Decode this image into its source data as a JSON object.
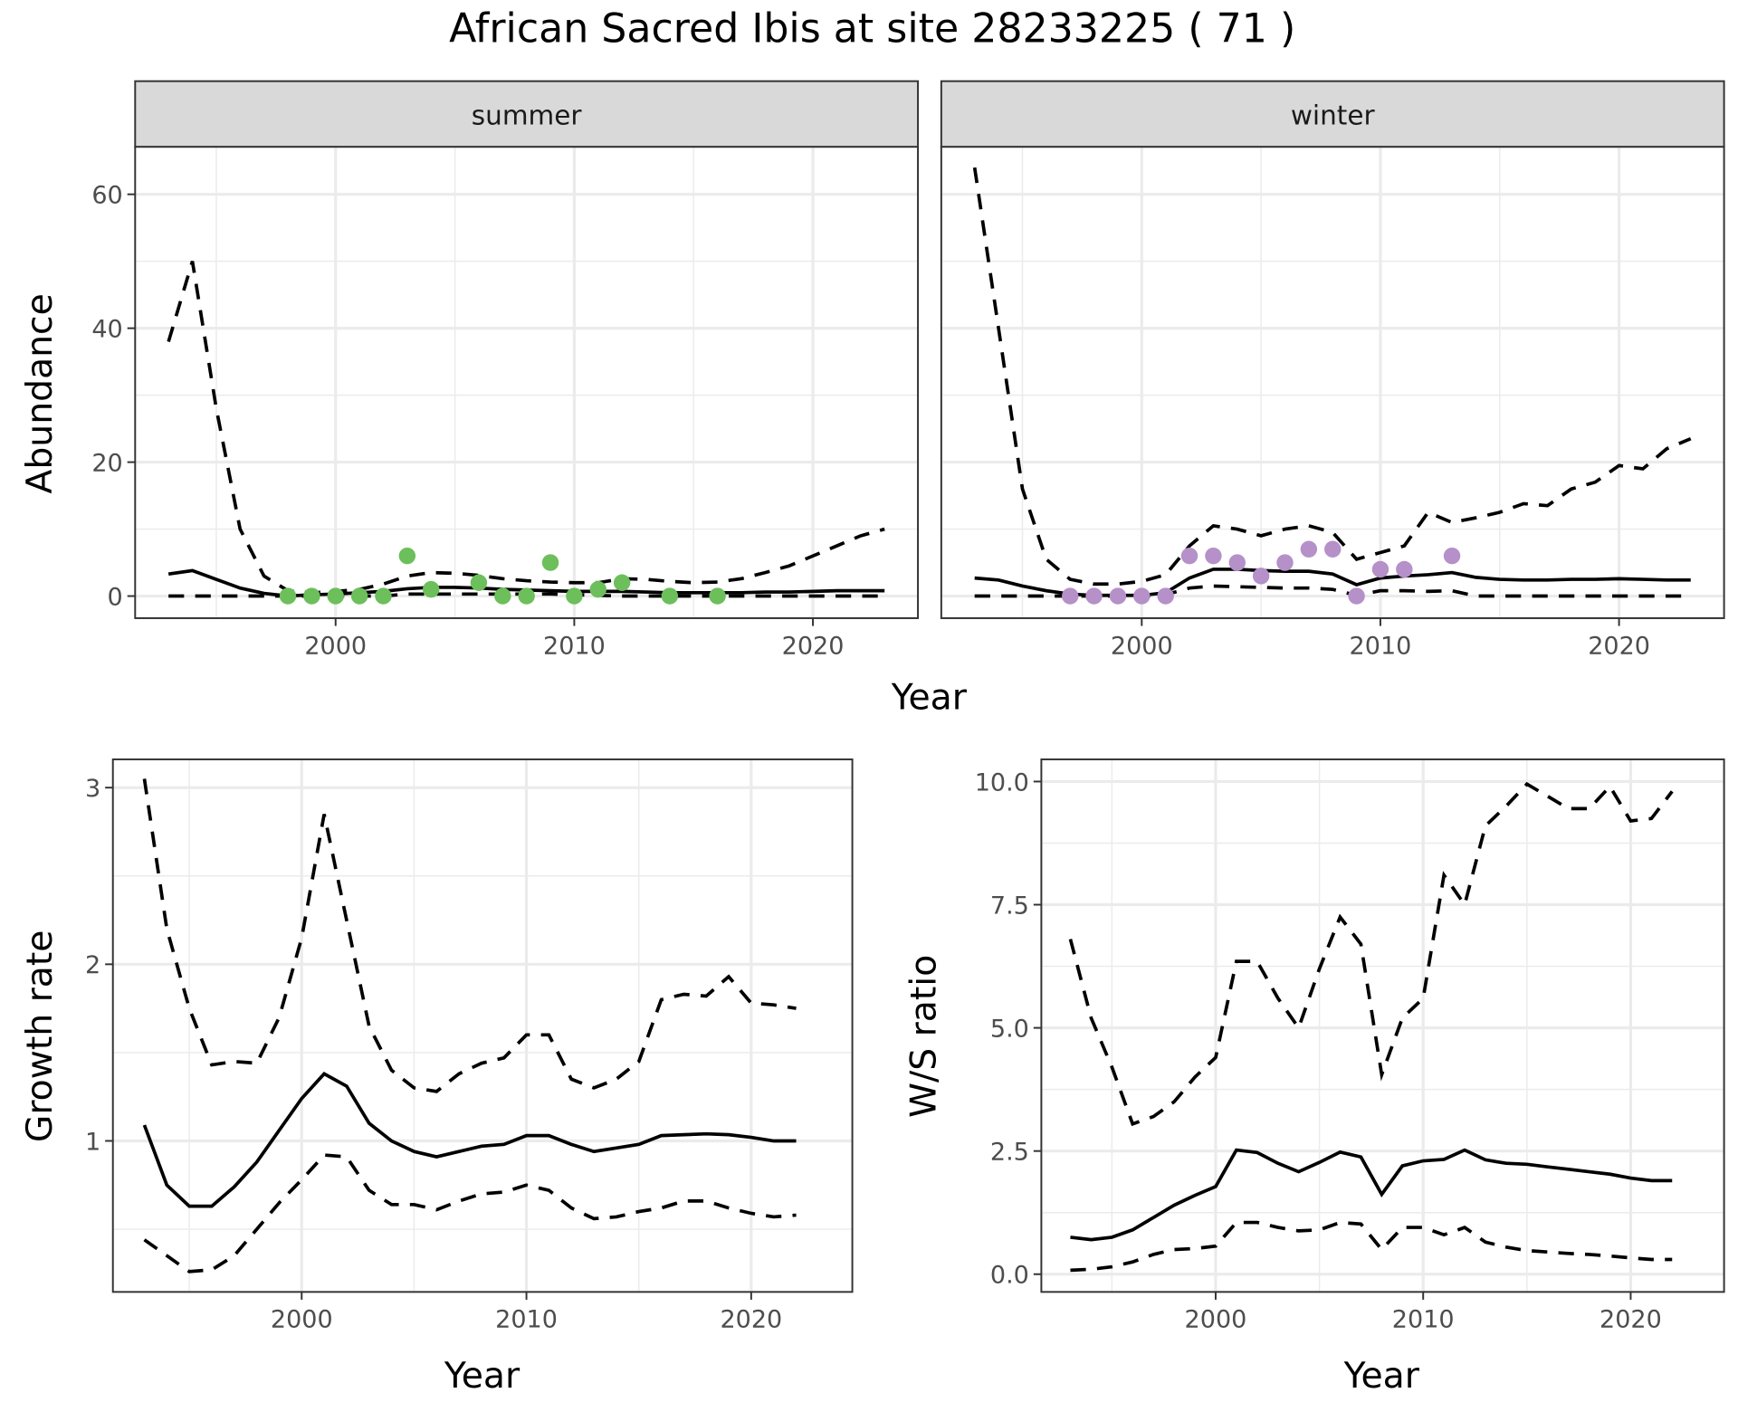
{
  "title": "African Sacred Ibis at site 28233225 ( 71 )",
  "colors": {
    "summer_points": "#6cbf5a",
    "winter_points": "#b690c8",
    "lines": "#000000",
    "grid": "#ebebeb",
    "strip": "#d9d9d9"
  },
  "chart_data": [
    {
      "type": "line+scatter",
      "facet": "summer",
      "xlabel": "Year",
      "ylabel": "Abundance",
      "xlim": [
        1991.6,
        2024.4
      ],
      "ylim": [
        -3.3,
        67.1
      ],
      "x_ticks": [
        "2000",
        "2010",
        "2020"
      ],
      "y_ticks": [
        "0",
        "20",
        "40",
        "60"
      ],
      "grid": true,
      "years": [
        1993,
        1994,
        1995,
        1996,
        1997,
        1998,
        1999,
        2000,
        2001,
        2002,
        2003,
        2004,
        2005,
        2006,
        2007,
        2008,
        2009,
        2010,
        2011,
        2012,
        2013,
        2014,
        2015,
        2016,
        2017,
        2018,
        2019,
        2020,
        2021,
        2022,
        2023
      ],
      "mean": [
        3.3,
        3.8,
        2.5,
        1.2,
        0.4,
        0.0,
        0.2,
        0.3,
        0.5,
        0.7,
        1.1,
        1.3,
        1.3,
        1.2,
        1.0,
        0.9,
        0.8,
        0.7,
        0.7,
        0.7,
        0.6,
        0.5,
        0.5,
        0.5,
        0.5,
        0.6,
        0.6,
        0.7,
        0.8,
        0.8,
        0.8
      ],
      "upper": [
        38,
        50,
        28,
        10,
        3,
        0.8,
        0.5,
        0.7,
        1.0,
        1.8,
        3.0,
        3.5,
        3.4,
        3.1,
        2.6,
        2.3,
        2.1,
        2.0,
        2.0,
        2.6,
        2.5,
        2.2,
        2.0,
        2.1,
        2.6,
        3.5,
        4.5,
        6.0,
        7.5,
        9.0,
        10.0
      ],
      "lower": [
        0,
        0,
        0,
        0,
        0,
        0,
        0,
        0,
        0,
        0,
        0.3,
        0.3,
        0.3,
        0.3,
        0.3,
        0.3,
        0.3,
        0.2,
        0.1,
        0,
        0,
        0,
        0,
        0,
        0,
        0,
        0,
        0,
        0,
        0,
        0
      ],
      "points": {
        "x": [
          1998,
          1999,
          2000,
          2001,
          2002,
          2003,
          2004,
          2006,
          2007,
          2008,
          2009,
          2010,
          2011,
          2012,
          2014,
          2016
        ],
        "y": [
          0,
          0,
          0,
          0,
          0,
          6,
          1,
          2,
          0,
          0,
          5,
          0,
          1,
          2,
          0,
          0
        ]
      }
    },
    {
      "type": "line+scatter",
      "facet": "winter",
      "xlabel": "Year",
      "ylabel": "Abundance",
      "xlim": [
        1991.6,
        2024.4
      ],
      "ylim": [
        -3.3,
        67.1
      ],
      "x_ticks": [
        "2000",
        "2010",
        "2020"
      ],
      "y_ticks": [
        "0",
        "20",
        "40",
        "60"
      ],
      "grid": true,
      "years": [
        1993,
        1994,
        1995,
        1996,
        1997,
        1998,
        1999,
        2000,
        2001,
        2002,
        2003,
        2004,
        2005,
        2006,
        2007,
        2008,
        2009,
        2010,
        2011,
        2012,
        2013,
        2014,
        2015,
        2016,
        2017,
        2018,
        2019,
        2020,
        2021,
        2022,
        2023
      ],
      "mean": [
        2.7,
        2.4,
        1.5,
        0.8,
        0.3,
        0.1,
        0.1,
        0.1,
        0.5,
        2.7,
        4.0,
        4.0,
        3.8,
        3.7,
        3.7,
        3.3,
        1.7,
        2.7,
        3.0,
        3.2,
        3.5,
        2.8,
        2.5,
        2.4,
        2.4,
        2.5,
        2.5,
        2.6,
        2.5,
        2.4,
        2.4
      ],
      "upper": [
        64,
        40,
        16,
        5.5,
        2.5,
        1.8,
        1.8,
        2.2,
        3.2,
        7.5,
        10.5,
        10,
        9,
        10,
        10.5,
        9.5,
        5.5,
        6.5,
        7.5,
        12.5,
        11,
        11.7,
        12.5,
        13.8,
        13.5,
        16,
        17,
        19.5,
        19,
        22,
        23.5
      ],
      "lower": [
        0,
        0,
        0,
        0,
        0,
        0,
        0,
        0,
        0.2,
        1.2,
        1.5,
        1.4,
        1.3,
        1.2,
        1.2,
        1.0,
        0.1,
        0.8,
        0.8,
        0.7,
        0.8,
        0,
        0,
        0,
        0,
        0,
        0,
        0,
        0,
        0,
        0
      ],
      "points": {
        "x": [
          1997,
          1998,
          1999,
          2000,
          2001,
          2002,
          2003,
          2004,
          2005,
          2006,
          2007,
          2008,
          2009,
          2010,
          2011,
          2013
        ],
        "y": [
          0,
          0,
          0,
          0,
          0,
          6,
          6,
          5,
          3,
          5,
          7,
          7,
          0,
          4,
          4,
          6
        ]
      }
    },
    {
      "type": "line",
      "xlabel": "Year",
      "ylabel": "Growth rate",
      "xlim": [
        1991.6,
        2024.5
      ],
      "ylim": [
        0.145,
        3.16
      ],
      "x_ticks": [
        "2000",
        "2010",
        "2020"
      ],
      "y_ticks": [
        "1",
        "2",
        "3"
      ],
      "grid": true,
      "years": [
        1993,
        1994,
        1995,
        1996,
        1997,
        1998,
        1999,
        2000,
        2001,
        2002,
        2003,
        2004,
        2005,
        2006,
        2007,
        2008,
        2009,
        2010,
        2011,
        2012,
        2013,
        2014,
        2015,
        2016,
        2017,
        2018,
        2019,
        2020,
        2021,
        2022
      ],
      "mean": [
        1.09,
        0.75,
        0.63,
        0.63,
        0.74,
        0.88,
        1.06,
        1.24,
        1.38,
        1.31,
        1.1,
        1.0,
        0.94,
        0.91,
        0.94,
        0.97,
        0.98,
        1.03,
        1.03,
        0.98,
        0.94,
        0.96,
        0.98,
        1.03,
        1.035,
        1.04,
        1.035,
        1.02,
        1.0,
        1.0
      ],
      "upper": [
        3.05,
        2.2,
        1.75,
        1.43,
        1.45,
        1.44,
        1.7,
        2.15,
        2.85,
        2.25,
        1.65,
        1.4,
        1.3,
        1.28,
        1.38,
        1.44,
        1.47,
        1.6,
        1.6,
        1.35,
        1.3,
        1.35,
        1.45,
        1.8,
        1.83,
        1.82,
        1.93,
        1.78,
        1.77,
        1.75
      ],
      "lower": [
        0.44,
        0.35,
        0.26,
        0.27,
        0.35,
        0.5,
        0.65,
        0.78,
        0.92,
        0.91,
        0.72,
        0.64,
        0.64,
        0.61,
        0.66,
        0.7,
        0.71,
        0.75,
        0.72,
        0.62,
        0.56,
        0.57,
        0.6,
        0.62,
        0.66,
        0.66,
        0.62,
        0.59,
        0.57,
        0.58
      ]
    },
    {
      "type": "line",
      "xlabel": "Year",
      "ylabel": "W/S ratio",
      "xlim": [
        1991.6,
        2024.5
      ],
      "ylim": [
        -0.36,
        10.45
      ],
      "x_ticks": [
        "2000",
        "2010",
        "2020"
      ],
      "y_ticks": [
        "0.0",
        "2.5",
        "5.0",
        "7.5",
        "10.0"
      ],
      "grid": true,
      "years": [
        1993,
        1994,
        1995,
        1996,
        1997,
        1998,
        1999,
        2000,
        2001,
        2002,
        2003,
        2004,
        2005,
        2006,
        2007,
        2008,
        2009,
        2010,
        2011,
        2012,
        2013,
        2014,
        2015,
        2016,
        2017,
        2018,
        2019,
        2020,
        2021,
        2022
      ],
      "mean": [
        0.75,
        0.7,
        0.75,
        0.9,
        1.15,
        1.4,
        1.6,
        1.78,
        2.52,
        2.47,
        2.25,
        2.08,
        2.27,
        2.48,
        2.38,
        1.62,
        2.2,
        2.3,
        2.33,
        2.52,
        2.32,
        2.25,
        2.23,
        2.18,
        2.13,
        2.08,
        2.03,
        1.95,
        1.9,
        1.9
      ],
      "upper": [
        6.8,
        5.2,
        4.2,
        3.05,
        3.2,
        3.5,
        4.0,
        4.4,
        6.35,
        6.35,
        5.6,
        5.0,
        6.2,
        7.25,
        6.7,
        4.05,
        5.2,
        5.6,
        8.1,
        7.5,
        9.1,
        9.5,
        9.95,
        9.7,
        9.45,
        9.45,
        9.9,
        9.2,
        9.25,
        9.8
      ],
      "lower": [
        0.08,
        0.1,
        0.15,
        0.25,
        0.4,
        0.5,
        0.52,
        0.57,
        1.05,
        1.05,
        0.95,
        0.88,
        0.9,
        1.05,
        1.02,
        0.5,
        0.95,
        0.95,
        0.8,
        0.95,
        0.65,
        0.55,
        0.48,
        0.45,
        0.42,
        0.4,
        0.37,
        0.33,
        0.3,
        0.3
      ]
    }
  ]
}
